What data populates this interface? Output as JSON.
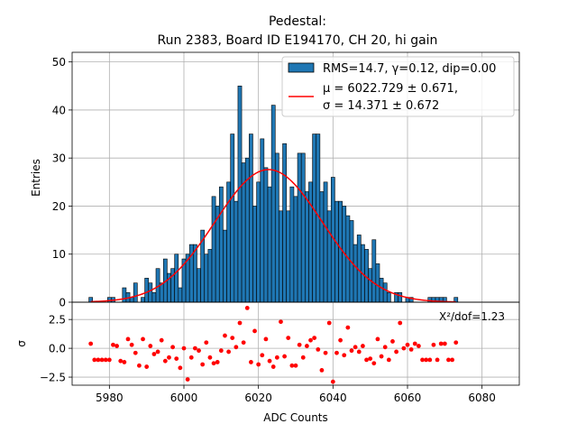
{
  "chart_data": [
    {
      "type": "bar",
      "panel": "histogram",
      "title_line1": "Pedestal:",
      "title_line2": "Run 2383, Board ID E194170, CH 20, hi gain",
      "ylabel": "Entries",
      "xlim": [
        5970,
        6090
      ],
      "ylim": [
        0,
        52
      ],
      "grid": true,
      "bar_color": "#1f77b4",
      "bin_width": 1,
      "x_ticks": [
        5980,
        6000,
        6020,
        6040,
        6060,
        6080
      ],
      "y_ticks": [
        0,
        10,
        20,
        30,
        40,
        50
      ],
      "bins": [
        5975,
        5980,
        5981,
        5984,
        5985,
        5986,
        5987,
        5989,
        5990,
        5991,
        5992,
        5993,
        5994,
        5995,
        5996,
        5997,
        5998,
        5999,
        6000,
        6001,
        6002,
        6003,
        6004,
        6005,
        6006,
        6007,
        6008,
        6009,
        6010,
        6011,
        6012,
        6013,
        6014,
        6015,
        6016,
        6017,
        6018,
        6019,
        6020,
        6021,
        6022,
        6023,
        6024,
        6025,
        6026,
        6027,
        6028,
        6029,
        6030,
        6031,
        6032,
        6033,
        6034,
        6035,
        6036,
        6037,
        6038,
        6039,
        6040,
        6041,
        6042,
        6043,
        6044,
        6045,
        6046,
        6047,
        6048,
        6049,
        6050,
        6051,
        6052,
        6053,
        6054,
        6055,
        6057,
        6058,
        6060,
        6061,
        6066,
        6067,
        6068,
        6069,
        6070,
        6073
      ],
      "values": [
        1,
        1,
        1,
        3,
        2,
        1,
        4,
        1,
        5,
        4,
        2,
        7,
        4,
        9,
        6,
        7,
        10,
        3,
        9,
        10,
        12,
        12,
        7,
        15,
        10,
        11,
        22,
        20,
        24,
        15,
        25,
        35,
        21,
        45,
        29,
        30,
        35,
        20,
        25,
        34,
        28,
        24,
        41,
        31,
        19,
        33,
        19,
        24,
        22,
        31,
        31,
        23,
        25,
        35,
        35,
        23,
        25,
        19,
        26,
        21,
        21,
        20,
        18,
        17,
        12,
        14,
        12,
        11,
        7,
        13,
        8,
        5,
        4,
        2,
        2,
        2,
        1,
        1,
        1,
        1,
        1,
        1,
        1,
        1
      ],
      "fit": {
        "type": "gaussian",
        "mu": 6022.729,
        "sigma": 14.371,
        "amplitude": 27.6,
        "color": "#ff0000"
      },
      "legend": {
        "position": "top-right",
        "entries": [
          {
            "kind": "patch",
            "text": "RMS=14.7, γ=0.12, dip=0.00"
          },
          {
            "kind": "line",
            "text_line1": "μ = 6022.729 ± 0.671,",
            "text_line2": "σ = 14.371 ± 0.672"
          }
        ]
      }
    },
    {
      "type": "scatter",
      "panel": "residuals",
      "xlabel": "ADC Counts",
      "ylabel": "σ",
      "xlim": [
        5970,
        6090
      ],
      "ylim": [
        -3.2,
        4.0
      ],
      "grid": true,
      "point_color": "#ff0000",
      "y_ticks": [
        -2.5,
        0.0,
        2.5
      ],
      "y_tick_labels": [
        "−2.5",
        "0.0",
        "2.5"
      ],
      "annotation": "X²/dof=1.23",
      "points": [
        [
          5975,
          0.4
        ],
        [
          5976,
          -1.0
        ],
        [
          5977,
          -1.0
        ],
        [
          5978,
          -1.0
        ],
        [
          5979,
          -1.0
        ],
        [
          5980,
          -1.0
        ],
        [
          5981,
          0.3
        ],
        [
          5982,
          0.2
        ],
        [
          5983,
          -1.1
        ],
        [
          5984,
          -1.2
        ],
        [
          5985,
          0.8
        ],
        [
          5986,
          0.3
        ],
        [
          5987,
          -0.4
        ],
        [
          5988,
          -1.5
        ],
        [
          5989,
          0.8
        ],
        [
          5990,
          -1.6
        ],
        [
          5991,
          0.2
        ],
        [
          5992,
          -0.5
        ],
        [
          5993,
          -0.3
        ],
        [
          5994,
          0.7
        ],
        [
          5995,
          -1.1
        ],
        [
          5996,
          -0.8
        ],
        [
          5997,
          0.1
        ],
        [
          5998,
          -0.9
        ],
        [
          5999,
          -1.7
        ],
        [
          6000,
          0.0
        ],
        [
          6001,
          -2.7
        ],
        [
          6002,
          -0.8
        ],
        [
          6003,
          0.0
        ],
        [
          6004,
          -0.2
        ],
        [
          6005,
          -1.4
        ],
        [
          6006,
          0.5
        ],
        [
          6007,
          -0.8
        ],
        [
          6008,
          -1.3
        ],
        [
          6009,
          -1.2
        ],
        [
          6010,
          -0.2
        ],
        [
          6011,
          1.1
        ],
        [
          6012,
          -0.3
        ],
        [
          6013,
          0.9
        ],
        [
          6014,
          0.1
        ],
        [
          6015,
          2.2
        ],
        [
          6016,
          0.5
        ],
        [
          6017,
          3.5
        ],
        [
          6018,
          -1.2
        ],
        [
          6019,
          1.5
        ],
        [
          6020,
          -1.4
        ],
        [
          6021,
          -0.6
        ],
        [
          6022,
          0.8
        ],
        [
          6023,
          -1.1
        ],
        [
          6024,
          -1.6
        ],
        [
          6025,
          -0.8
        ],
        [
          6026,
          2.3
        ],
        [
          6027,
          -0.7
        ],
        [
          6028,
          0.9
        ],
        [
          6029,
          -1.5
        ],
        [
          6030,
          -1.5
        ],
        [
          6031,
          0.3
        ],
        [
          6032,
          -0.8
        ],
        [
          6033,
          0.2
        ],
        [
          6034,
          0.7
        ],
        [
          6035,
          0.9
        ],
        [
          6036,
          -0.1
        ],
        [
          6037,
          -1.9
        ],
        [
          6038,
          -0.4
        ],
        [
          6039,
          2.2
        ],
        [
          6040,
          -2.9
        ],
        [
          6041,
          -0.4
        ],
        [
          6042,
          0.7
        ],
        [
          6043,
          -0.6
        ],
        [
          6044,
          1.8
        ],
        [
          6045,
          -0.2
        ],
        [
          6046,
          0.1
        ],
        [
          6047,
          -0.3
        ],
        [
          6048,
          0.2
        ],
        [
          6049,
          -1.0
        ],
        [
          6050,
          -0.9
        ],
        [
          6051,
          -1.3
        ],
        [
          6052,
          0.8
        ],
        [
          6053,
          -0.7
        ],
        [
          6054,
          0.1
        ],
        [
          6055,
          -1.0
        ],
        [
          6056,
          0.6
        ],
        [
          6057,
          -0.3
        ],
        [
          6058,
          2.2
        ],
        [
          6059,
          0.0
        ],
        [
          6060,
          0.3
        ],
        [
          6061,
          -0.1
        ],
        [
          6062,
          0.4
        ],
        [
          6063,
          0.2
        ],
        [
          6064,
          -1.0
        ],
        [
          6065,
          -1.0
        ],
        [
          6066,
          -1.0
        ],
        [
          6067,
          0.3
        ],
        [
          6068,
          -1.0
        ],
        [
          6069,
          0.4
        ],
        [
          6070,
          0.4
        ],
        [
          6071,
          -1.0
        ],
        [
          6072,
          -1.0
        ],
        [
          6073,
          0.5
        ]
      ]
    }
  ]
}
